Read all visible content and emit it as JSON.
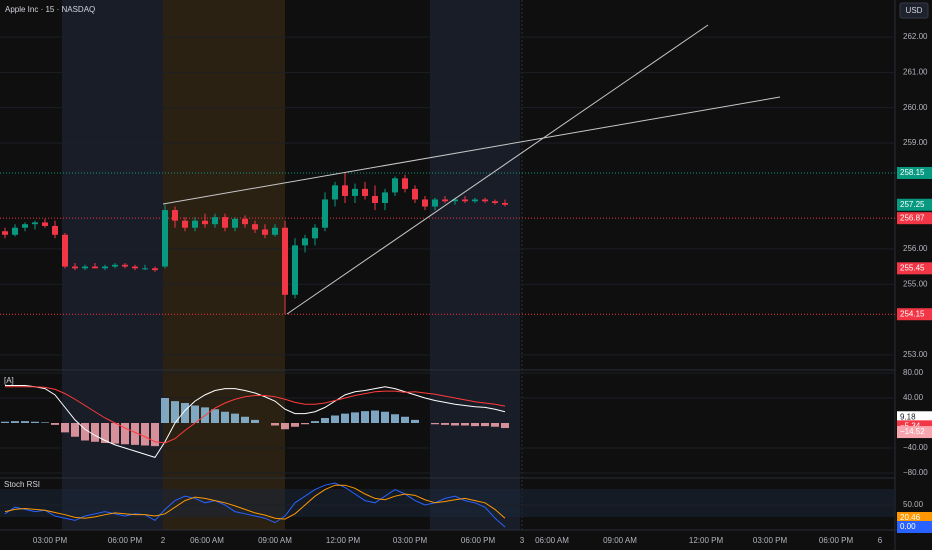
{
  "chart_data": [
    {
      "type": "candlestick",
      "title": "Apple Inc · 15 · NASDAQ",
      "currency": "USD",
      "ylim": [
        252.57,
        263.05
      ],
      "yticks": [
        {
          "value": 253,
          "label": "253.00"
        },
        {
          "value": 255,
          "label": "255.00"
        },
        {
          "value": 256,
          "label": "256.00"
        },
        {
          "value": 259,
          "label": "259.00"
        },
        {
          "value": 260,
          "label": "260.00"
        },
        {
          "value": 261,
          "label": "261.00"
        },
        {
          "value": 262,
          "label": "262.00"
        }
      ],
      "open": [
        256.5,
        256.4,
        256.6,
        256.7,
        256.75,
        256.65,
        256.4,
        255.5,
        255.45,
        255.5,
        255.45,
        255.5,
        255.55,
        255.5,
        255.45,
        255.45,
        255.5,
        257.1,
        256.8,
        256.6,
        256.8,
        256.7,
        256.9,
        256.6,
        256.85,
        256.7,
        256.55,
        256.4,
        256.6,
        254.7,
        256.1,
        256.3,
        256.6,
        257.4,
        257.8,
        257.5,
        257.7,
        257.5,
        257.3,
        257.6,
        258.0,
        257.7,
        257.4,
        257.2,
        257.4,
        257.35,
        257.4,
        257.35,
        257.4,
        257.35,
        257.3
      ],
      "high": [
        256.6,
        256.7,
        256.75,
        256.8,
        256.85,
        256.8,
        256.45,
        255.6,
        255.55,
        255.6,
        255.55,
        255.6,
        255.6,
        255.55,
        255.55,
        255.5,
        257.25,
        257.2,
        256.9,
        256.9,
        257.0,
        257.0,
        257.0,
        256.9,
        256.95,
        256.8,
        256.7,
        256.7,
        256.8,
        256.3,
        256.4,
        256.7,
        257.6,
        257.9,
        258.15,
        257.85,
        257.9,
        257.8,
        257.7,
        258.05,
        258.1,
        257.8,
        257.5,
        257.45,
        257.5,
        257.45,
        257.5,
        257.45,
        257.45,
        257.4,
        257.4
      ],
      "low": [
        256.3,
        256.35,
        256.5,
        256.55,
        256.6,
        256.3,
        255.45,
        255.4,
        255.4,
        255.45,
        255.4,
        255.45,
        255.45,
        255.4,
        255.4,
        255.35,
        255.45,
        256.6,
        256.5,
        256.5,
        256.6,
        256.6,
        256.5,
        256.5,
        256.6,
        256.45,
        256.3,
        256.35,
        254.15,
        254.6,
        255.9,
        256.1,
        256.5,
        257.2,
        257.3,
        257.3,
        257.4,
        257.1,
        257.1,
        257.5,
        257.6,
        257.3,
        257.1,
        257.1,
        257.3,
        257.25,
        257.3,
        257.3,
        257.3,
        257.25,
        257.2
      ],
      "close": [
        256.4,
        256.6,
        256.7,
        256.75,
        256.65,
        256.4,
        255.5,
        255.45,
        255.5,
        255.45,
        255.5,
        255.55,
        255.5,
        255.45,
        255.45,
        255.4,
        257.1,
        256.8,
        256.6,
        256.8,
        256.7,
        256.9,
        256.6,
        256.85,
        256.7,
        256.55,
        256.4,
        256.6,
        254.7,
        256.1,
        256.3,
        256.6,
        257.4,
        257.8,
        257.5,
        257.7,
        257.5,
        257.3,
        257.6,
        258.0,
        257.7,
        257.4,
        257.2,
        257.4,
        257.35,
        257.4,
        257.35,
        257.4,
        257.35,
        257.3,
        257.25
      ],
      "up_color": "#089981",
      "down_color": "#f23645",
      "price_labels": [
        {
          "value": 258.15,
          "label": "258.15",
          "color": "#089981",
          "line": true
        },
        {
          "value": 257.25,
          "label": "257.25",
          "color": "#089981",
          "line": false
        },
        {
          "value": 256.87,
          "label": "256.87",
          "color": "#f23645",
          "line": true
        },
        {
          "value": 255.45,
          "label": "255.45",
          "color": "#f23645",
          "line": false
        },
        {
          "value": 254.15,
          "label": "254.15",
          "color": "#f23645",
          "line": true
        }
      ],
      "categories": [
        "03:00 PM",
        "06:00 PM",
        "2",
        "06:00 AM",
        "09:00 AM",
        "12:00 PM",
        "03:00 PM",
        "06:00 PM",
        "3",
        "06:00 AM",
        "09:00 AM",
        "12:00 PM",
        "03:00 PM",
        "06:00 PM",
        "6"
      ]
    },
    {
      "type": "macd",
      "title": "[A]",
      "ylim": [
        -88,
        81.6
      ],
      "yticks": [
        {
          "value": 80,
          "label": "80.00"
        },
        {
          "value": 40,
          "label": "40.00"
        },
        {
          "value": -40,
          "label": "−40.00"
        },
        {
          "value": -80,
          "label": "−80.00"
        }
      ],
      "series": [
        {
          "name": "Histogram",
          "color": "#f7a5ae",
          "values": [
            2,
            3,
            3,
            2,
            1,
            -3,
            -15,
            -22,
            -28,
            -30,
            -32,
            -33,
            -34,
            -35,
            -36,
            -37,
            40,
            35,
            32,
            28,
            25,
            22,
            18,
            15,
            10,
            5,
            0,
            -4,
            -10,
            -6,
            -2,
            3,
            8,
            12,
            15,
            17,
            19,
            20,
            18,
            14,
            10,
            5,
            0,
            -2,
            -3,
            -4,
            -4,
            -5,
            -5,
            -6,
            -8
          ]
        },
        {
          "name": "MACD",
          "color": "#ffffff",
          "values": [
            60,
            60,
            60,
            58,
            55,
            45,
            25,
            5,
            -10,
            -20,
            -28,
            -35,
            -40,
            -45,
            -50,
            -55,
            -30,
            0,
            20,
            35,
            45,
            52,
            55,
            55,
            52,
            48,
            42,
            35,
            22,
            15,
            15,
            18,
            25,
            35,
            45,
            50,
            52,
            55,
            58,
            55,
            50,
            45,
            40,
            36,
            33,
            30,
            28,
            26,
            25,
            22,
            18
          ]
        },
        {
          "name": "Signal",
          "color": "#ff3b3b",
          "values": [
            58,
            58,
            58,
            58,
            57,
            54,
            47,
            38,
            28,
            18,
            8,
            0,
            -8,
            -15,
            -22,
            -30,
            -32,
            -25,
            -12,
            0,
            12,
            24,
            32,
            38,
            42,
            44,
            44,
            42,
            38,
            33,
            30,
            30,
            32,
            36,
            40,
            44,
            47,
            50,
            51,
            51,
            49,
            50,
            48,
            46,
            43,
            40,
            37,
            34,
            32,
            30,
            27
          ]
        }
      ],
      "value_labels": [
        {
          "value": 9.18,
          "label": "9.18",
          "color": "#ffffff"
        },
        {
          "value": -5.34,
          "label": "−5.34",
          "color": "#f23645"
        },
        {
          "value": -14.52,
          "label": "−14.52",
          "color": "#f7a5ae"
        }
      ]
    },
    {
      "type": "stoch",
      "title": "Stoch RSI",
      "ylim": [
        -6.8,
        106.8
      ],
      "yticks": [
        {
          "value": 50,
          "label": "50.00"
        }
      ],
      "series": [
        {
          "name": "K",
          "color": "#2962ff",
          "values": [
            30,
            45,
            40,
            35,
            38,
            25,
            20,
            15,
            25,
            30,
            35,
            30,
            25,
            30,
            28,
            15,
            40,
            60,
            70,
            65,
            55,
            60,
            50,
            35,
            30,
            25,
            20,
            10,
            25,
            55,
            70,
            85,
            95,
            100,
            90,
            75,
            60,
            55,
            70,
            85,
            75,
            60,
            50,
            55,
            65,
            70,
            60,
            55,
            45,
            20,
            0
          ]
        },
        {
          "name": "D",
          "color": "#ff9800",
          "values": [
            35,
            40,
            42,
            40,
            38,
            33,
            28,
            22,
            20,
            23,
            28,
            32,
            30,
            28,
            28,
            25,
            30,
            45,
            60,
            68,
            65,
            60,
            55,
            48,
            40,
            32,
            27,
            20,
            18,
            30,
            50,
            70,
            85,
            95,
            95,
            88,
            75,
            65,
            62,
            70,
            75,
            72,
            62,
            55,
            58,
            62,
            65,
            60,
            55,
            40,
            20
          ]
        }
      ],
      "value_labels": [
        {
          "value": 20.46,
          "label": "20.46",
          "color": "#ff9800"
        },
        {
          "value": 0,
          "label": "0.00",
          "color": "#2962ff"
        }
      ]
    }
  ]
}
